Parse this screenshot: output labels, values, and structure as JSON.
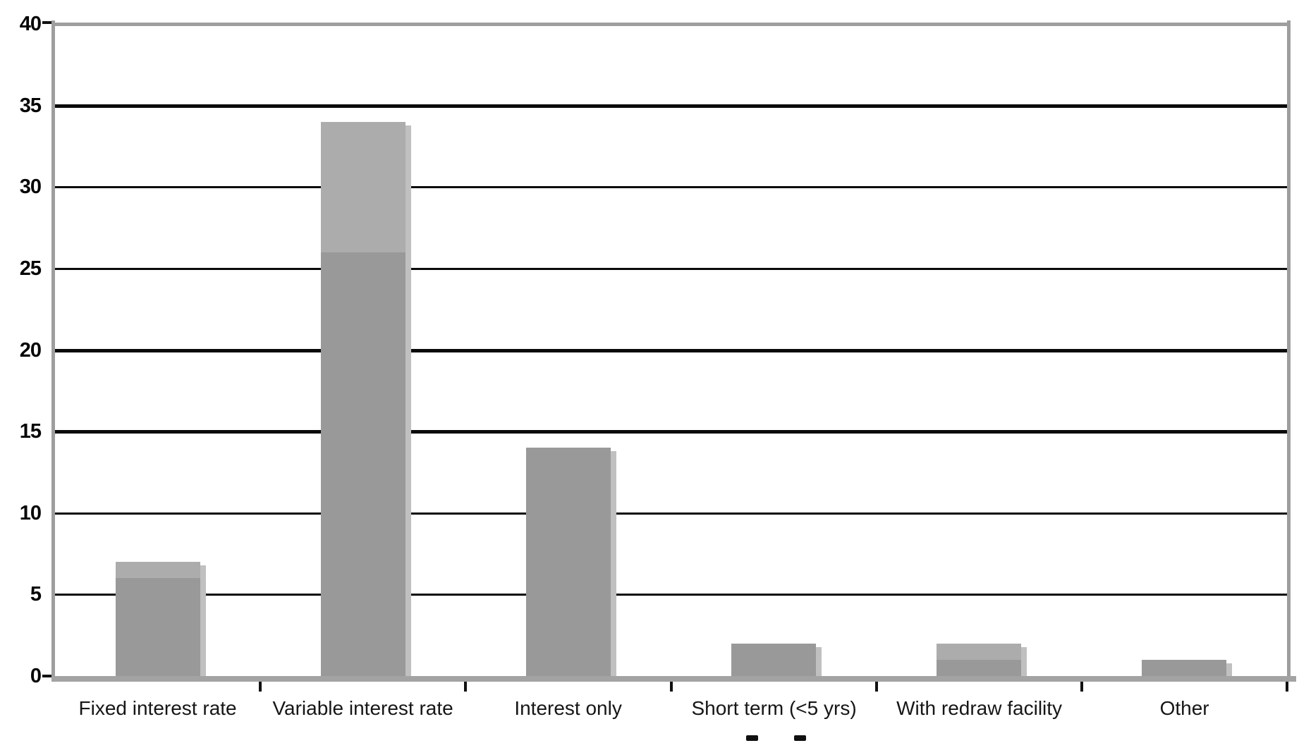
{
  "chart_data": {
    "type": "bar",
    "title": "",
    "categories": [
      "Fixed interest rate",
      "Variable interest rate",
      "Interest only",
      "Short term (<5 yrs)",
      "With redraw facility",
      "Other"
    ],
    "series": [
      {
        "name": "light-gray-bars-back",
        "color": "#acacac",
        "values": [
          7,
          34,
          14,
          2,
          2,
          1
        ]
      },
      {
        "name": "dark-gray-bars-front",
        "color": "#999999",
        "values": [
          6,
          26,
          14,
          2,
          1,
          1
        ]
      }
    ],
    "xlabel": "",
    "ylabel": "",
    "ylim": [
      0,
      40
    ],
    "ytick_step": 5,
    "ytick_labels": [
      "0",
      "5",
      "10",
      "15",
      "20",
      "25",
      "30",
      "35",
      "40"
    ],
    "grid": "horizontal",
    "thick_gridline_values": [
      15,
      20,
      35
    ],
    "legend": "none",
    "bar_style": "overlapped; lighter series drawn behind darker series with a pale drop-shadow offset right and down",
    "cropped_caption_fragments": 2
  },
  "colors": {
    "bar_dark": "#999999",
    "bar_light": "#acacac",
    "bar_shadow": "#c0c0c0",
    "axis_gray": "#9e9e9e",
    "baseline_gray": "#a3a3a3",
    "gridline_black": "#0a0a0a",
    "label_color": "#161616"
  }
}
